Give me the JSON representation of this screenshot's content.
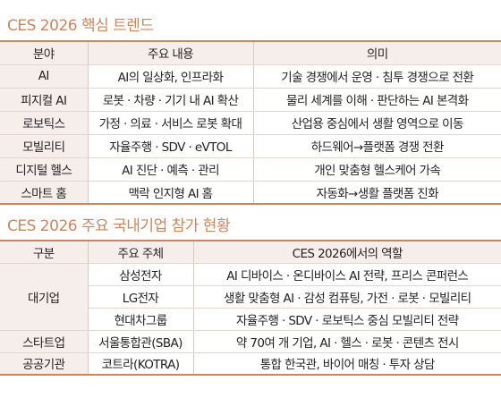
{
  "section1": {
    "title": "CES 2026 핵심 트렌드",
    "headers": [
      "분야",
      "주요 내용",
      "의미"
    ],
    "rows": [
      [
        "AI",
        "AI의 일상화, 인프라화",
        "기술 경쟁에서 운영 · 침투 경쟁으로 전환"
      ],
      [
        "피지컬 AI",
        "로봇 · 차량 · 기기 내 AI 확산",
        "물리 세계를 이해 · 판단하는 AI 본격화"
      ],
      [
        "로보틱스",
        "가정 · 의료 · 서비스 로봇 확대",
        "산업용 중심에서 생활 영역으로 이동"
      ],
      [
        "모빌리티",
        "자율주행 · SDV · eVTOL",
        "하드웨어→플랫폼 경쟁 전환"
      ],
      [
        "디지털 헬스",
        "AI 진단 · 예측 · 관리",
        "개인 맞춤형 헬스케어 가속"
      ],
      [
        "스마트 홈",
        "맥락 인지형 AI 홈",
        "자동화→생활 플랫폼 진화"
      ]
    ]
  },
  "section2": {
    "title": "CES 2026 주요 국내기업 참가 현황",
    "headers": [
      "구분",
      "주요 주체",
      "CES 2026에서의 역할"
    ],
    "group_large": "대기업",
    "large_rows": [
      [
        "삼성전자",
        "AI 디바이스 · 온디바이스 AI 전략, 프리스 콘퍼런스"
      ],
      [
        "LG전자",
        "생활 맞춤형 AI · 감성 컴퓨팅, 가전 · 로봇 · 모빌리티"
      ],
      [
        "현대차그룹",
        "자율주행 · SDV · 로보틱스 중심 모빌리티 전략"
      ]
    ],
    "other_rows": [
      [
        "스타트업",
        "서울통합관(SBA)",
        "약 70여 개 기업, AI · 헬스 · 로봇 · 콘텐츠 전시"
      ],
      [
        "공공기관",
        "코트라(KOTRA)",
        "통합 한국관, 바이어 매칭 · 투자 상담"
      ]
    ]
  }
}
